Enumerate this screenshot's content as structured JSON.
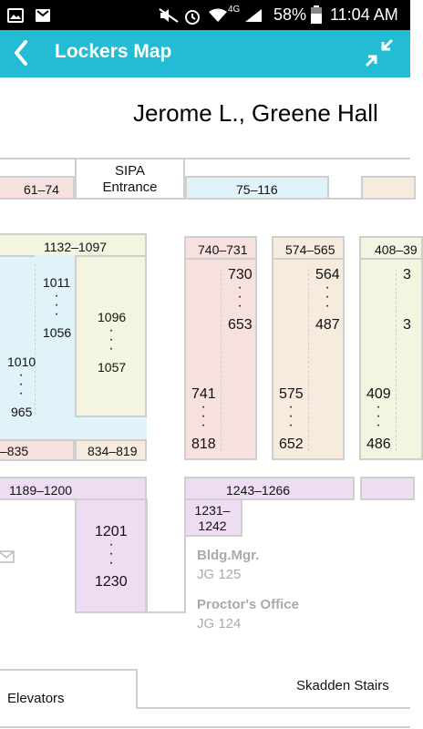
{
  "status_bar": {
    "battery": "58%",
    "time": "11:04 AM",
    "network": "4G"
  },
  "app_bar": {
    "title": "Lockers Map"
  },
  "map": {
    "building": "Jerome L., Greene Hall",
    "entrance": "SIPA\nEntrance",
    "rows": {
      "r61_74": "61–74",
      "r75_116": "75–116",
      "r1132_1097": "1132–1097",
      "r1011": "1011",
      "r1056": "1056",
      "r1096": "1096",
      "r1057": "1057",
      "r1010": "1010",
      "r965": "965",
      "r835": "–835",
      "r834_819": "834–819",
      "r740_731": "740–731",
      "r730": "730",
      "r653": "653",
      "r741": "741",
      "r818": "818",
      "r574_565": "574–565",
      "r564": "564",
      "r487": "487",
      "r575": "575",
      "r652": "652",
      "r408_39": "408–39",
      "r3a": "3",
      "r3b": "3",
      "r409": "409",
      "r486": "486",
      "r1189_1200": "1189–1200",
      "r1243_1266": "1243–1266",
      "r1231_1242": "1231–\n1242",
      "r1201": "1201",
      "r1230": "1230"
    },
    "offices": {
      "bldg_mgr": "Bldg.Mgr.",
      "bldg_mgr_room": "JG 125",
      "proctor": "Proctor's Office",
      "proctor_room": "JG 124"
    },
    "elevators": "Elevators",
    "skadden_stairs": "Skadden Stairs"
  }
}
